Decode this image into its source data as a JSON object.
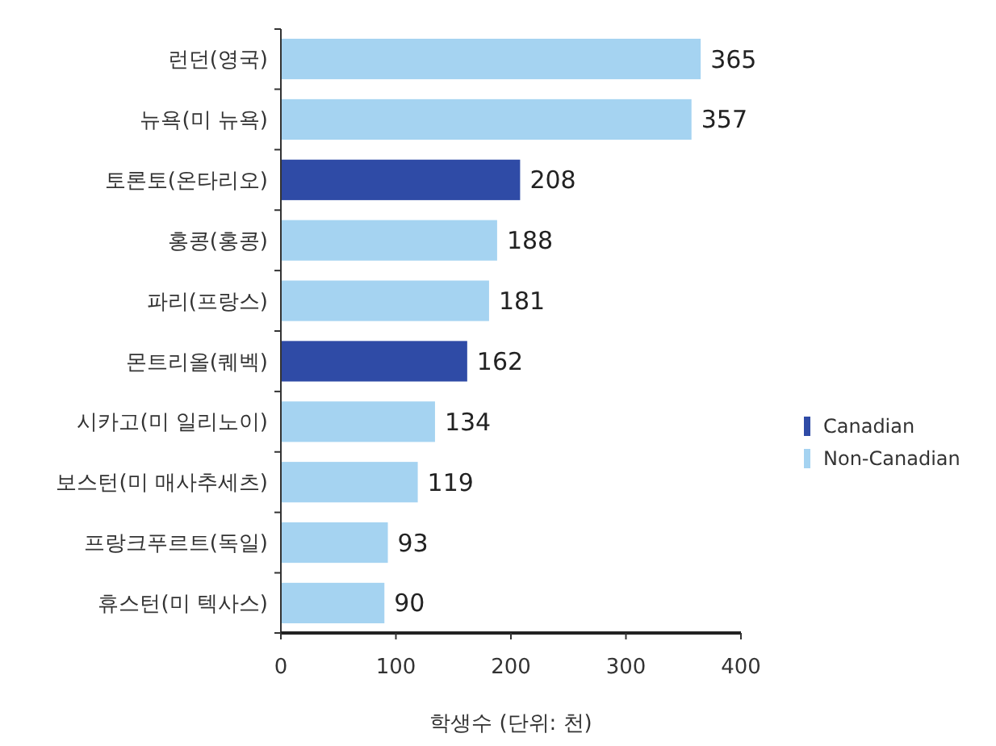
{
  "chart_data": {
    "type": "bar",
    "orientation": "horizontal",
    "xlabel": "학생수 (단위: 천)",
    "categories": [
      "런던(영국)",
      "뉴욕(미 뉴욕)",
      "토론토(온타리오)",
      "홍콩(홍콩)",
      "파리(프랑스)",
      "몬트리올(퀘벡)",
      "시카고(미 일리노이)",
      "보스턴(미 매사추세츠)",
      "프랑크푸르트(독일)",
      "휴스턴(미 텍사스)"
    ],
    "series": [
      {
        "name": "Canadian",
        "color": "#2f4ba6",
        "values": [
          null,
          null,
          208,
          null,
          null,
          162,
          null,
          null,
          null,
          null
        ]
      },
      {
        "name": "Non-Canadian",
        "color": "#a5d3f1",
        "values": [
          365,
          357,
          null,
          188,
          181,
          null,
          134,
          119,
          93,
          90
        ]
      }
    ],
    "xlim": [
      0,
      400
    ],
    "xticks": [
      0,
      100,
      200,
      300,
      400
    ],
    "data_labels": true,
    "legend": "right"
  }
}
